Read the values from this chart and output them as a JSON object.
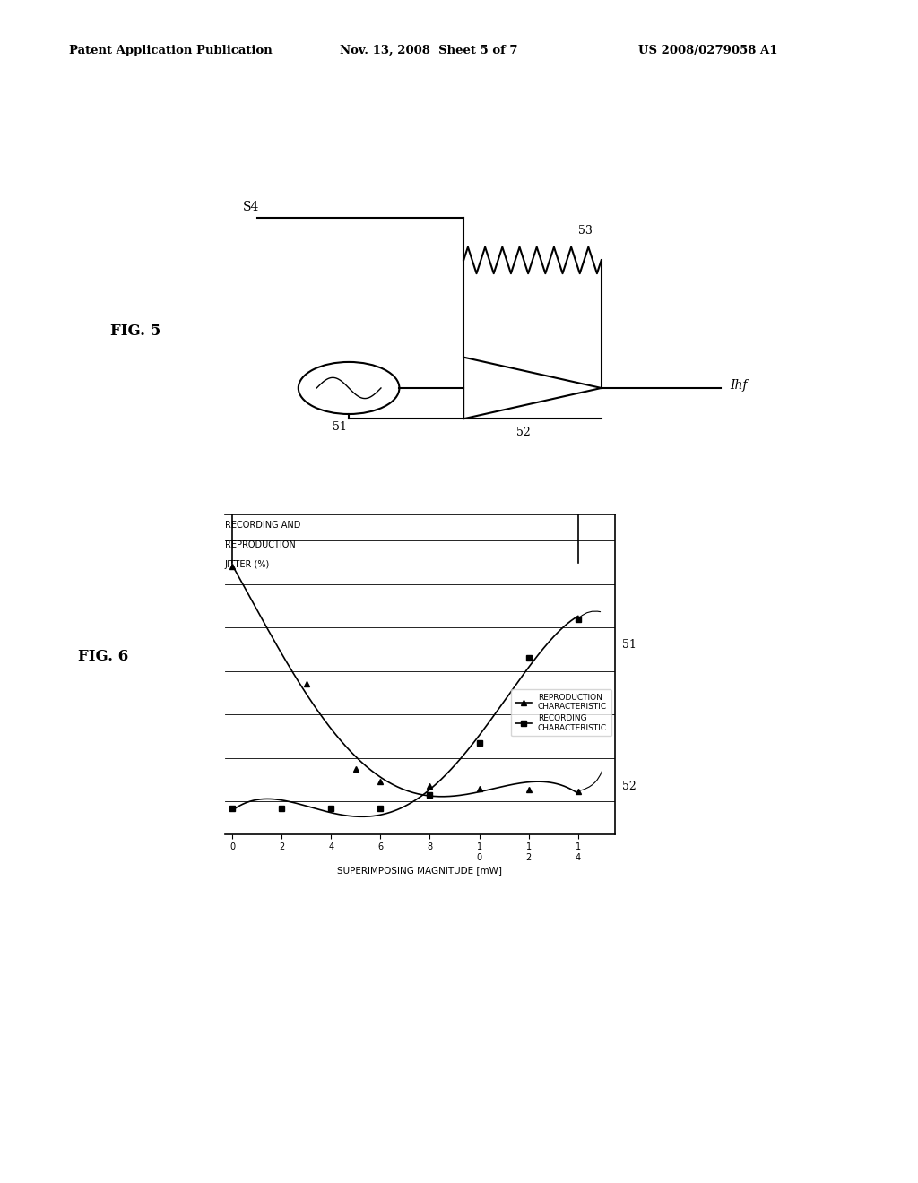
{
  "header_left": "Patent Application Publication",
  "header_mid": "Nov. 13, 2008  Sheet 5 of 7",
  "header_right": "US 2008/0279058 A1",
  "fig5_label": "FIG. 5",
  "fig6_label": "FIG. 6",
  "s4_label": "S4",
  "lbl51": "51",
  "lbl52": "52",
  "lbl53": "53",
  "ihf_label": "Ihf",
  "fig6_ylabel_line1": "RECORDING AND",
  "fig6_ylabel_line2": "REPRODUCTION",
  "fig6_ylabel_line3": "JITTER (%)",
  "fig6_xlabel": "SUPERIMPOSING MAGNITUDE [mW]",
  "fig6_legend1": "REPRODUCTION\nCHARACTERISTIC",
  "fig6_legend2": "RECORDING\nCHARACTERISTIC",
  "fig6_label51": "51",
  "fig6_label52": "52",
  "repro_x": [
    0,
    3,
    5,
    6,
    8,
    10,
    12,
    14
  ],
  "repro_y": [
    20,
    11,
    4.5,
    3.5,
    3.2,
    3.0,
    2.9,
    2.8
  ],
  "record_x": [
    0,
    2,
    4,
    6,
    8,
    10,
    12,
    14
  ],
  "record_y": [
    1.5,
    1.5,
    1.5,
    1.5,
    2.5,
    6.5,
    13,
    16
  ],
  "xtick_labels": [
    "0",
    "2",
    "4",
    "6",
    "8",
    "1\n0",
    "1\n2",
    "1\n4"
  ],
  "xtick_vals": [
    0,
    2,
    4,
    6,
    8,
    10,
    12,
    14
  ],
  "bg_color": "#ffffff",
  "line_color": "#000000"
}
